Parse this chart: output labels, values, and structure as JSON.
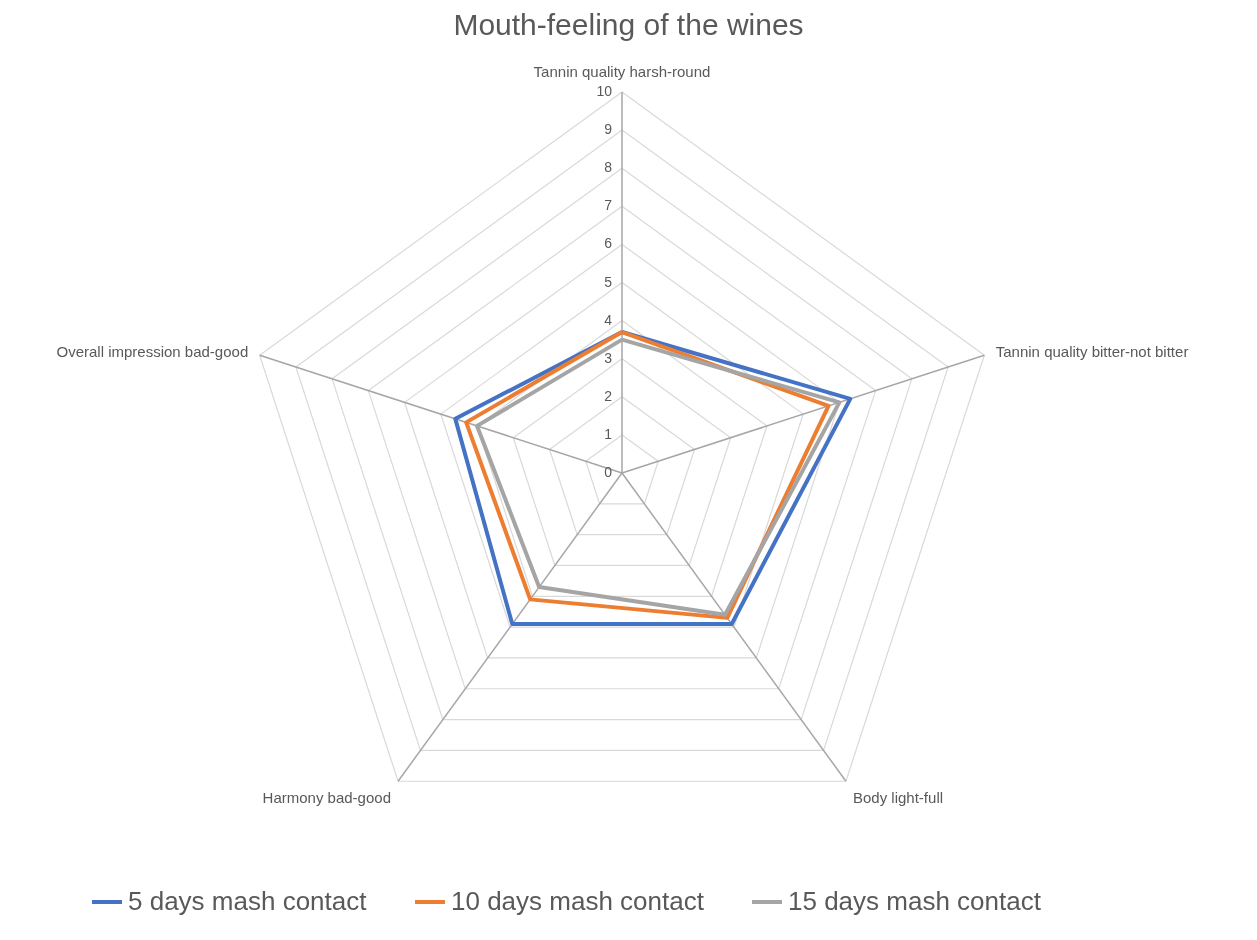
{
  "chart_data": {
    "type": "radar",
    "title": "Mouth-feeling of the wines",
    "categories": [
      "Tannin quality harsh-round",
      "Tannin quality bitter-not bitter",
      "Body light-full",
      "Harmony bad-good",
      "Overall impression bad-good"
    ],
    "series": [
      {
        "name": "5 days mash contact",
        "color": "#4472c4",
        "values": [
          3.7,
          6.3,
          4.9,
          4.9,
          4.6
        ]
      },
      {
        "name": "10 days mash contact",
        "color": "#ed7d31",
        "values": [
          3.7,
          5.7,
          4.7,
          4.1,
          4.3
        ]
      },
      {
        "name": "15 days mash contact",
        "color": "#a5a5a5",
        "values": [
          3.5,
          6.0,
          4.6,
          3.7,
          4.0
        ]
      }
    ],
    "ylim": [
      0,
      10
    ],
    "yticks": [
      0,
      1,
      2,
      3,
      4,
      5,
      6,
      7,
      8,
      9,
      10
    ],
    "grid": true,
    "legend": "bottom"
  }
}
